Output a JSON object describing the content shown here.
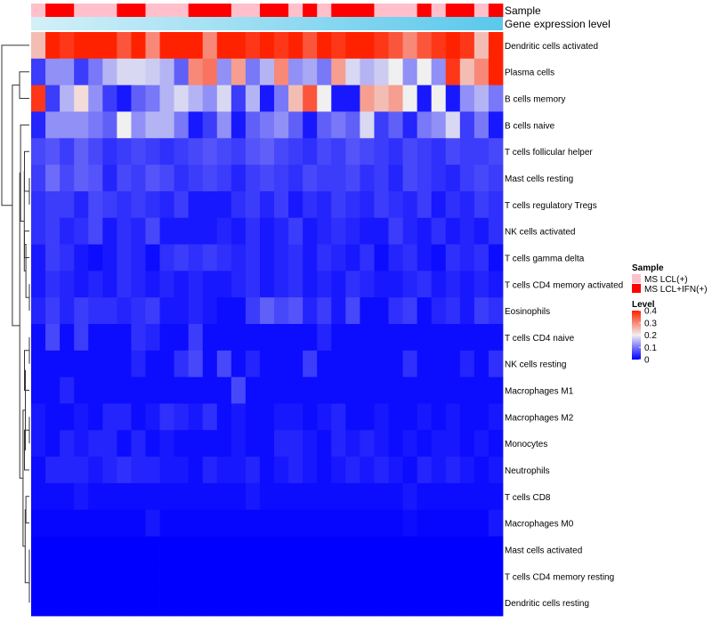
{
  "chart_data": {
    "type": "heatmap",
    "title": "",
    "annotation_labels": {
      "sample": "Sample",
      "expression": "Gene expression level"
    },
    "sample_groups": {
      "colors": {
        "MS LCL(+)": "#ffc0cb",
        "MS LCL+IFN(+)": "#ff0000"
      },
      "columns": [
        "MS LCL(+)",
        "MS LCL+IFN(+)",
        "MS LCL+IFN(+)",
        "MS LCL(+)",
        "MS LCL(+)",
        "MS LCL(+)",
        "MS LCL+IFN(+)",
        "MS LCL+IFN(+)",
        "MS LCL(+)",
        "MS LCL(+)",
        "MS LCL(+)",
        "MS LCL+IFN(+)",
        "MS LCL+IFN(+)",
        "MS LCL+IFN(+)",
        "MS LCL(+)",
        "MS LCL(+)",
        "MS LCL+IFN(+)",
        "MS LCL+IFN(+)",
        "MS LCL(+)",
        "MS LCL+IFN(+)",
        "MS LCL(+)",
        "MS LCL+IFN(+)",
        "MS LCL+IFN(+)",
        "MS LCL+IFN(+)",
        "MS LCL(+)",
        "MS LCL(+)",
        "MS LCL(+)",
        "MS LCL+IFN(+)",
        "MS LCL(+)",
        "MS LCL+IFN(+)",
        "MS LCL+IFN(+)",
        "MS LCL(+)",
        "MS LCL+IFN(+)"
      ]
    },
    "expression_bar": {
      "color_left": "#d3f0f8",
      "color_right": "#5bc8ec"
    },
    "rows": [
      "Dendritic cells activated",
      "Plasma cells",
      "B cells memory",
      "B cells naive",
      "T cells follicular helper",
      "Mast cells resting",
      "T cells regulatory  Tregs",
      "NK cells activated",
      "T cells gamma delta",
      "T cells CD4 memory activated",
      "Eosinophils",
      "T cells CD4 naive",
      "NK cells resting",
      "Macrophages M1",
      "Macrophages M2",
      "Monocytes",
      "Neutrophils",
      "T cells CD8",
      "Macrophages M0",
      "Mast cells activated",
      "T cells CD4 memory resting",
      "Dendritic cells resting"
    ],
    "row_means": [
      0.36,
      0.17,
      0.13,
      0.08,
      0.06,
      0.05,
      0.05,
      0.04,
      0.05,
      0.04,
      0.04,
      0.02,
      0.02,
      0.01,
      0.02,
      0.02,
      0.03,
      0.01,
      0.005,
      0,
      0,
      0
    ],
    "values": [
      [
        0.25,
        0.4,
        0.38,
        0.4,
        0.4,
        0.4,
        0.35,
        0.4,
        0.3,
        0.4,
        0.4,
        0.4,
        0.3,
        0.4,
        0.4,
        0.38,
        0.4,
        0.38,
        0.4,
        0.35,
        0.4,
        0.38,
        0.4,
        0.4,
        0.38,
        0.35,
        0.3,
        0.35,
        0.38,
        0.4,
        0.38,
        0.25,
        0.4
      ],
      [
        0.05,
        0.12,
        0.12,
        0.05,
        0.1,
        0.15,
        0.18,
        0.18,
        0.17,
        0.15,
        0.08,
        0.3,
        0.32,
        0.12,
        0.28,
        0.1,
        0.15,
        0.3,
        0.12,
        0.14,
        0.1,
        0.28,
        0.18,
        0.15,
        0.17,
        0.2,
        0.12,
        0.2,
        0.12,
        0.38,
        0.25,
        0.3,
        0.4
      ],
      [
        0.38,
        0.05,
        0.15,
        0.22,
        0.12,
        0.05,
        0.02,
        0.08,
        0.1,
        0.15,
        0.18,
        0.15,
        0.12,
        0.18,
        0.05,
        0.15,
        0.02,
        0.1,
        0.25,
        0.35,
        0.2,
        0.02,
        0.02,
        0.28,
        0.25,
        0.28,
        0.2,
        0.02,
        0.2,
        0.02,
        0.12,
        0.15,
        0.1
      ],
      [
        0.03,
        0.12,
        0.12,
        0.12,
        0.1,
        0.08,
        0.2,
        0.12,
        0.15,
        0.15,
        0.1,
        0.02,
        0.05,
        0.12,
        0.02,
        0.08,
        0.1,
        0.12,
        0.08,
        0.02,
        0.08,
        0.1,
        0.08,
        0.18,
        0.05,
        0.08,
        0.03,
        0.1,
        0.12,
        0.18,
        0.05,
        0.1,
        0.02
      ],
      [
        0.06,
        0.07,
        0.05,
        0.08,
        0.06,
        0.04,
        0.05,
        0.06,
        0.05,
        0.04,
        0.05,
        0.06,
        0.07,
        0.06,
        0.05,
        0.07,
        0.08,
        0.06,
        0.05,
        0.04,
        0.06,
        0.05,
        0.07,
        0.06,
        0.05,
        0.04,
        0.06,
        0.05,
        0.04,
        0.06,
        0.05,
        0.05,
        0.06
      ],
      [
        0.05,
        0.09,
        0.06,
        0.08,
        0.07,
        0.03,
        0.06,
        0.05,
        0.07,
        0.06,
        0.04,
        0.05,
        0.06,
        0.05,
        0.03,
        0.05,
        0.06,
        0.05,
        0.04,
        0.06,
        0.05,
        0.05,
        0.06,
        0.04,
        0.05,
        0.03,
        0.06,
        0.05,
        0.04,
        0.03,
        0.05,
        0.06,
        0.05
      ],
      [
        0.04,
        0.05,
        0.05,
        0.03,
        0.06,
        0.05,
        0.04,
        0.05,
        0.04,
        0.03,
        0.05,
        0.02,
        0.02,
        0.02,
        0.04,
        0.05,
        0.03,
        0.05,
        0.02,
        0.04,
        0.03,
        0.05,
        0.04,
        0.03,
        0.05,
        0.04,
        0.03,
        0.05,
        0.02,
        0.04,
        0.03,
        0.05,
        0.04
      ],
      [
        0.04,
        0.05,
        0.03,
        0.04,
        0.06,
        0.02,
        0.04,
        0.03,
        0.06,
        0.02,
        0.02,
        0.02,
        0.02,
        0.03,
        0.02,
        0.04,
        0.02,
        0.03,
        0.05,
        0.02,
        0.03,
        0.04,
        0.03,
        0.02,
        0.02,
        0.05,
        0.03,
        0.02,
        0.04,
        0.02,
        0.03,
        0.02,
        0.04
      ],
      [
        0.02,
        0.05,
        0.04,
        0.02,
        0.01,
        0.02,
        0.04,
        0.03,
        0.01,
        0.04,
        0.05,
        0.04,
        0.05,
        0.04,
        0.03,
        0.04,
        0.02,
        0.03,
        0.04,
        0.02,
        0.04,
        0.03,
        0.02,
        0.04,
        0.01,
        0.03,
        0.04,
        0.02,
        0.01,
        0.04,
        0.03,
        0.04,
        0.01
      ],
      [
        0.02,
        0.04,
        0.03,
        0.02,
        0.03,
        0.02,
        0.04,
        0.03,
        0.02,
        0.03,
        0.02,
        0.03,
        0.02,
        0.02,
        0.03,
        0.04,
        0.02,
        0.03,
        0.04,
        0.02,
        0.03,
        0.02,
        0.04,
        0.03,
        0.02,
        0.02,
        0.03,
        0.04,
        0.02,
        0.03,
        0.02,
        0.03,
        0.02
      ],
      [
        0.03,
        0.05,
        0.03,
        0.05,
        0.04,
        0.04,
        0.03,
        0.04,
        0.05,
        0.02,
        0.02,
        0.03,
        0.02,
        0.01,
        0.01,
        0.05,
        0.08,
        0.06,
        0.07,
        0.03,
        0.05,
        0.02,
        0.06,
        0.01,
        0.01,
        0.04,
        0.05,
        0.01,
        0.03,
        0.04,
        0.02,
        0.05,
        0.04
      ],
      [
        0.01,
        0.06,
        0.01,
        0.05,
        0.01,
        0.01,
        0.01,
        0.04,
        0.03,
        0.01,
        0.01,
        0.05,
        0.01,
        0.01,
        0.01,
        0.01,
        0.01,
        0.01,
        0.01,
        0.01,
        0.03,
        0.01,
        0.01,
        0.01,
        0.01,
        0.01,
        0.01,
        0.01,
        0.01,
        0.01,
        0.01,
        0.01,
        0.01
      ],
      [
        0.01,
        0.01,
        0.01,
        0.01,
        0.01,
        0.01,
        0.01,
        0.03,
        0.01,
        0.01,
        0.04,
        0.06,
        0.01,
        0.06,
        0.01,
        0.03,
        0.01,
        0.01,
        0.01,
        0.05,
        0.01,
        0.01,
        0.01,
        0.01,
        0.01,
        0.01,
        0.04,
        0.01,
        0.01,
        0.01,
        0.03,
        0.01,
        0.04
      ],
      [
        0.01,
        0.01,
        0.03,
        0.01,
        0.01,
        0.01,
        0.01,
        0.01,
        0.01,
        0.01,
        0.01,
        0.01,
        0.01,
        0.01,
        0.06,
        0.01,
        0.01,
        0.01,
        0.01,
        0.01,
        0.01,
        0.01,
        0.01,
        0.01,
        0.01,
        0.01,
        0.01,
        0.01,
        0.01,
        0.01,
        0.01,
        0.01,
        0.01
      ],
      [
        0.02,
        0.01,
        0.01,
        0.02,
        0.01,
        0.03,
        0.03,
        0.01,
        0.02,
        0.04,
        0.03,
        0.02,
        0.04,
        0.01,
        0.02,
        0.01,
        0.01,
        0.02,
        0.02,
        0.01,
        0.02,
        0.03,
        0.01,
        0.01,
        0.02,
        0.01,
        0.01,
        0.02,
        0.01,
        0.02,
        0.01,
        0.01,
        0.02
      ],
      [
        0.02,
        0.01,
        0.03,
        0.02,
        0.03,
        0.03,
        0.01,
        0.03,
        0.01,
        0.02,
        0.01,
        0.01,
        0.01,
        0.01,
        0.02,
        0.01,
        0.01,
        0.03,
        0.03,
        0.02,
        0.01,
        0.03,
        0.02,
        0.03,
        0.02,
        0.01,
        0.02,
        0.01,
        0.02,
        0.02,
        0.01,
        0.02,
        0.01
      ],
      [
        0.01,
        0.03,
        0.03,
        0.03,
        0.02,
        0.03,
        0.04,
        0.03,
        0.03,
        0.02,
        0.02,
        0.01,
        0.03,
        0.02,
        0.02,
        0.03,
        0.01,
        0.02,
        0.03,
        0.02,
        0.01,
        0.02,
        0.03,
        0.02,
        0.03,
        0.02,
        0.01,
        0.03,
        0.02,
        0.03,
        0.02,
        0.01,
        0.02
      ],
      [
        0.01,
        0.01,
        0.01,
        0.02,
        0.01,
        0.01,
        0.01,
        0.01,
        0.01,
        0.01,
        0.01,
        0.01,
        0.01,
        0.01,
        0.01,
        0.02,
        0.01,
        0.01,
        0.01,
        0.01,
        0.01,
        0.01,
        0.01,
        0.01,
        0.01,
        0.01,
        0.02,
        0.01,
        0.01,
        0.01,
        0.01,
        0.01,
        0.01
      ],
      [
        0.005,
        0.005,
        0.005,
        0.005,
        0.005,
        0.005,
        0.005,
        0.005,
        0.02,
        0.005,
        0.005,
        0.005,
        0.005,
        0.005,
        0.005,
        0.005,
        0.005,
        0.005,
        0.005,
        0.005,
        0.005,
        0.005,
        0.005,
        0.005,
        0.005,
        0.005,
        0.01,
        0.005,
        0.005,
        0.005,
        0.005,
        0.005,
        0.02
      ],
      [
        0,
        0,
        0,
        0,
        0,
        0,
        0,
        0,
        0,
        0,
        0,
        0,
        0,
        0,
        0,
        0,
        0,
        0,
        0,
        0,
        0,
        0,
        0,
        0,
        0,
        0,
        0,
        0,
        0,
        0,
        0,
        0,
        0
      ],
      [
        0,
        0,
        0,
        0,
        0,
        0,
        0,
        0,
        0,
        0,
        0,
        0,
        0,
        0,
        0,
        0,
        0,
        0,
        0,
        0,
        0,
        0,
        0,
        0,
        0,
        0,
        0,
        0,
        0,
        0,
        0,
        0,
        0
      ],
      [
        0,
        0,
        0,
        0,
        0,
        0,
        0,
        0,
        0,
        0,
        0,
        0,
        0,
        0,
        0,
        0,
        0,
        0,
        0,
        0,
        0,
        0,
        0,
        0,
        0,
        0,
        0,
        0,
        0,
        0,
        0,
        0,
        0
      ]
    ],
    "color_scale": {
      "low": "#0000ff",
      "mid": "#f0f0f0",
      "high": "#ff2200",
      "min": 0,
      "mid_value": 0.2,
      "max": 0.4
    },
    "legend": {
      "sample_title": "Sample",
      "sample_entries": [
        "MS LCL(+)",
        "MS LCL+IFN(+)"
      ],
      "level_title": "Level",
      "level_ticks": [
        "0.4",
        "0.3",
        "0.2",
        "0.1",
        "0"
      ],
      "level_tick_values": [
        0.4,
        0.3,
        0.2,
        0.1,
        0
      ],
      "placement": "right"
    }
  }
}
